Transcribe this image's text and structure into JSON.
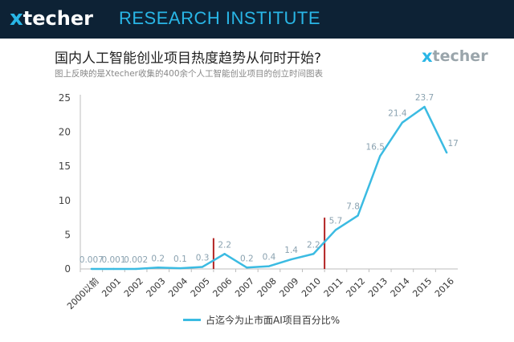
{
  "header": {
    "logo_x": "x",
    "logo_word": "techer",
    "title": "RESEARCH INSTITUTE"
  },
  "title": "国内人工智能创业项目热度趋势从何时开始?",
  "subtitle": "图上反映的是Xtecher收集的400余个人工智能创业项目的创立时间图表",
  "logo": {
    "x": "x",
    "word": "techer"
  },
  "colors": {
    "header_bg": "#0d2235",
    "accent": "#29b6e6",
    "line": "#3bbbe2",
    "marker": "#b22222",
    "label": "#8aa2b0"
  },
  "chart_data": {
    "type": "line",
    "categories": [
      "2000以前",
      "2001",
      "2002",
      "2003",
      "2004",
      "2005",
      "2006",
      "2007",
      "2008",
      "2009",
      "2010",
      "2011",
      "2012",
      "2013",
      "2014",
      "2015",
      "2016"
    ],
    "series": [
      {
        "name": "占迄今为止市面AI项目百分比%",
        "values": [
          0.007,
          0.001,
          0.002,
          0.2,
          0.1,
          0.3,
          2.2,
          0.2,
          0.4,
          1.4,
          2.2,
          5.7,
          7.8,
          16.5,
          21.4,
          23.7,
          17
        ]
      }
    ],
    "data_labels": [
      "0.007",
      "0.001",
      "0.002",
      "0.2",
      "0.1",
      "0.3",
      "2.2",
      "0.2",
      "0.4",
      "1.4",
      "2.2",
      "5.7",
      "7.8",
      "16.5",
      "21.4",
      "23.7",
      "17"
    ],
    "y_ticks": [
      "0",
      "5",
      "10",
      "15",
      "20",
      "25"
    ],
    "ylim": [
      0,
      25
    ],
    "markers_after_category": [
      "2005",
      "2010"
    ],
    "marker_heights": [
      4.5,
      7.5
    ],
    "legend_position": "bottom",
    "grid": false
  }
}
